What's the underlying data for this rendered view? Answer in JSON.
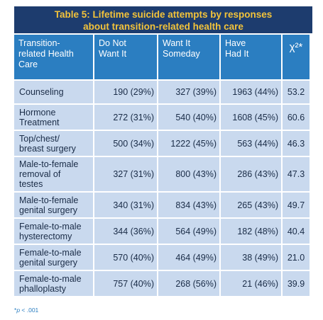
{
  "title_line1": "Table 5: Lifetime suicide attempts by responses",
  "title_line2": "about transition-related health care",
  "headers": {
    "col0": [
      "Transition-",
      "related Health",
      "Care"
    ],
    "col1": [
      "Do Not",
      "Want It"
    ],
    "col2": [
      "Want It",
      "Someday"
    ],
    "col3": [
      "Have",
      "Had It"
    ],
    "col4": "χ²*"
  },
  "rows": [
    {
      "label": [
        "Counseling"
      ],
      "not_want": "190 (29%)",
      "someday": "327 (39%)",
      "had": "1963 (44%)",
      "chi": "53.2"
    },
    {
      "label": [
        "Hormone",
        "Treatment"
      ],
      "not_want": "272 (31%)",
      "someday": "540 (40%)",
      "had": "1608 (45%)",
      "chi": "60.6"
    },
    {
      "label": [
        "Top/chest/",
        "breast surgery"
      ],
      "not_want": "500 (34%)",
      "someday": "1222 (45%)",
      "had": "563 (44%)",
      "chi": "46.3"
    },
    {
      "label": [
        "Male-to-female",
        "removal of",
        "testes"
      ],
      "not_want": "327 (31%)",
      "someday": "800 (43%)",
      "had": "286 (43%)",
      "chi": "47.3"
    },
    {
      "label": [
        "Male-to-female",
        "genital surgery"
      ],
      "not_want": "340 (31%)",
      "someday": "834 (43%)",
      "had": "265 (43%)",
      "chi": "49.7"
    },
    {
      "label": [
        "Female-to-male",
        "hysterectomy"
      ],
      "not_want": "344 (36%)",
      "someday": "564 (49%)",
      "had": "182 (48%)",
      "chi": "40.4"
    },
    {
      "label": [
        "Female-to-male",
        "genital surgery"
      ],
      "not_want": "570 (40%)",
      "someday": "464 (49%)",
      "had": "38 (49%)",
      "chi": "21.0"
    },
    {
      "label": [
        "Female-to-male",
        "phalloplasty"
      ],
      "not_want": "757 (40%)",
      "someday": "268 (56%)",
      "had": "21 (46%)",
      "chi": "39.9"
    }
  ],
  "footnote_p": "p",
  "footnote_rest": " < .001",
  "footnote_star": "*",
  "colors": {
    "title_bg": "#1d3c6e",
    "title_text": "#f3c33a",
    "header_bg": "#2b7ec1",
    "cell_bg": "#c9d9ee"
  }
}
